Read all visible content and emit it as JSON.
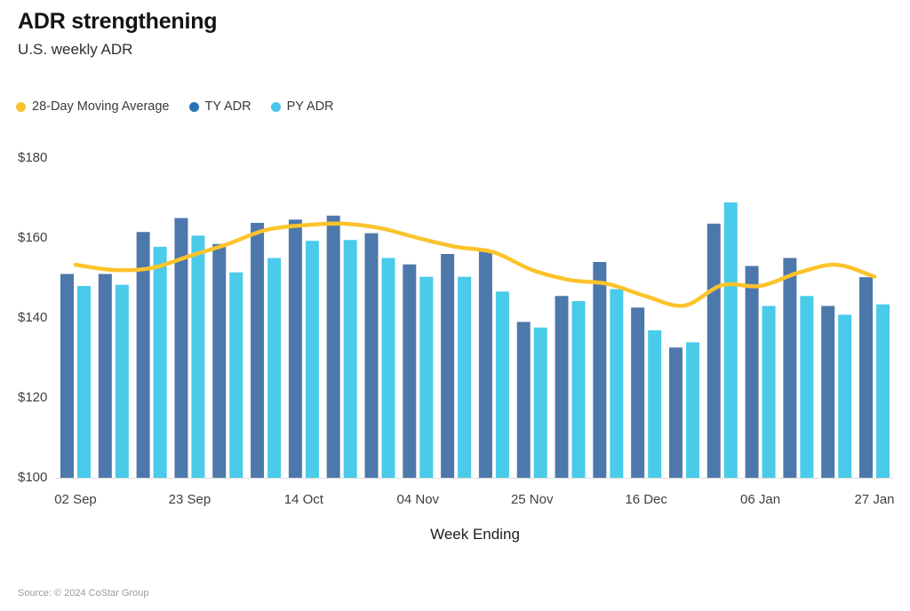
{
  "header": {
    "title": "ADR strengthening",
    "subtitle": "U.S. weekly ADR"
  },
  "legend_items": [
    {
      "label": "28-Day Moving Average",
      "dot_color": "#f6c333",
      "icon": "legend-dot-moving-average"
    },
    {
      "label": "TY ADR",
      "dot_color": "#2a72b3",
      "icon": "legend-dot-ty-adr"
    },
    {
      "label": "PY ADR",
      "dot_color": "#4cc4ec",
      "icon": "legend-dot-py-adr"
    }
  ],
  "chart_data": {
    "type": "bar",
    "subtype": "grouped weekly bars with 28-day moving-average line overlay",
    "title": "ADR strengthening",
    "subtitle": "U.S. weekly ADR",
    "xlabel": "Week Ending",
    "ylabel": "",
    "ylim": [
      100,
      180
    ],
    "yticks": [
      100,
      120,
      140,
      160,
      180
    ],
    "ytick_prefix": "$",
    "grid": false,
    "legend_position": "top-left",
    "x": [
      "02 Sep",
      "09 Sep",
      "16 Sep",
      "23 Sep",
      "30 Sep",
      "07 Oct",
      "14 Oct",
      "21 Oct",
      "28 Oct",
      "04 Nov",
      "11 Nov",
      "18 Nov",
      "25 Nov",
      "02 Dec",
      "09 Dec",
      "16 Dec",
      "23 Dec",
      "30 Dec",
      "06 Jan",
      "13 Jan",
      "20 Jan",
      "27 Jan"
    ],
    "x_tick_labels_shown": [
      "02 Sep",
      "23 Sep",
      "14 Oct",
      "04 Nov",
      "25 Nov",
      "16 Dec",
      "06 Jan",
      "27 Jan"
    ],
    "series": [
      {
        "name": "TY ADR",
        "type": "bar",
        "color": "#4d78ab",
        "values": [
          151,
          151,
          161.5,
          165,
          158.5,
          163.8,
          164.6,
          165.6,
          161.2,
          153.4,
          156,
          156.6,
          139,
          145.5,
          154,
          142.6,
          132.6,
          163.6,
          153,
          155,
          143,
          150.2
        ]
      },
      {
        "name": "PY ADR",
        "type": "bar",
        "color": "#49cbe9",
        "values": [
          148,
          148.3,
          157.8,
          160.6,
          151.4,
          155,
          159.3,
          159.5,
          155,
          150.3,
          150.3,
          146.6,
          137.6,
          144.2,
          147.2,
          136.9,
          133.9,
          168.9,
          143,
          145.5,
          140.8,
          143.4
        ]
      },
      {
        "name": "28-Day Moving Average",
        "type": "line",
        "color": "#fcc32b",
        "values": [
          153.3,
          152,
          152.5,
          155.5,
          158.5,
          162,
          163.2,
          163.6,
          162.5,
          160,
          157.8,
          156.4,
          152,
          149.5,
          148.5,
          145.4,
          143.1,
          148.2,
          148,
          151.3,
          153.3,
          150.3
        ]
      }
    ]
  },
  "footer": {
    "source": "Source: © 2024 CoStar Group"
  }
}
